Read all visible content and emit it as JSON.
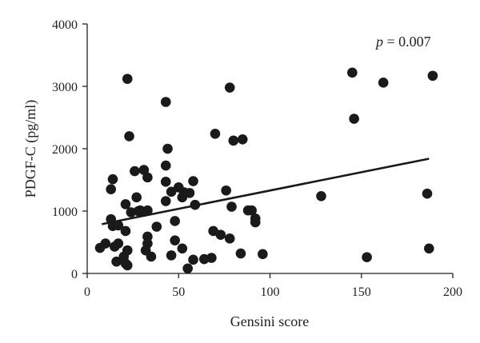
{
  "chart_data": {
    "type": "scatter",
    "title": "",
    "xlabel": "Gensini score",
    "ylabel": "PDGF-C (pg/ml)",
    "xlim": [
      0,
      200
    ],
    "ylim": [
      0,
      4000
    ],
    "xticks": [
      0,
      50,
      100,
      150,
      200
    ],
    "yticks": [
      0,
      1000,
      2000,
      3000,
      4000
    ],
    "grid": false,
    "annotation": {
      "italic": "p",
      "rest": " = 0.007"
    },
    "trendline": {
      "x": [
        8,
        187
      ],
      "y": [
        790,
        1840
      ]
    },
    "points": [
      {
        "x": 22,
        "y": 3120
      },
      {
        "x": 43,
        "y": 2750
      },
      {
        "x": 78,
        "y": 2980
      },
      {
        "x": 145,
        "y": 3220
      },
      {
        "x": 162,
        "y": 3060
      },
      {
        "x": 189,
        "y": 3170
      },
      {
        "x": 146,
        "y": 2480
      },
      {
        "x": 23,
        "y": 2200
      },
      {
        "x": 70,
        "y": 2240
      },
      {
        "x": 80,
        "y": 2130
      },
      {
        "x": 85,
        "y": 2150
      },
      {
        "x": 44,
        "y": 2000
      },
      {
        "x": 43,
        "y": 1730
      },
      {
        "x": 26,
        "y": 1640
      },
      {
        "x": 31,
        "y": 1660
      },
      {
        "x": 33,
        "y": 1540
      },
      {
        "x": 14,
        "y": 1510
      },
      {
        "x": 13,
        "y": 1350
      },
      {
        "x": 43,
        "y": 1470
      },
      {
        "x": 58,
        "y": 1480
      },
      {
        "x": 50,
        "y": 1380
      },
      {
        "x": 46,
        "y": 1310
      },
      {
        "x": 53,
        "y": 1300
      },
      {
        "x": 56,
        "y": 1290
      },
      {
        "x": 52,
        "y": 1220
      },
      {
        "x": 76,
        "y": 1330
      },
      {
        "x": 27,
        "y": 1220
      },
      {
        "x": 43,
        "y": 1160
      },
      {
        "x": 59,
        "y": 1100
      },
      {
        "x": 21,
        "y": 1110
      },
      {
        "x": 24,
        "y": 980
      },
      {
        "x": 29,
        "y": 1010
      },
      {
        "x": 33,
        "y": 1010
      },
      {
        "x": 31,
        "y": 990
      },
      {
        "x": 28,
        "y": 1000
      },
      {
        "x": 79,
        "y": 1070
      },
      {
        "x": 88,
        "y": 1010
      },
      {
        "x": 90,
        "y": 1010
      },
      {
        "x": 92,
        "y": 880
      },
      {
        "x": 92,
        "y": 820
      },
      {
        "x": 128,
        "y": 1240
      },
      {
        "x": 186,
        "y": 1280
      },
      {
        "x": 13,
        "y": 870
      },
      {
        "x": 14,
        "y": 760
      },
      {
        "x": 17,
        "y": 770
      },
      {
        "x": 21,
        "y": 680
      },
      {
        "x": 38,
        "y": 750
      },
      {
        "x": 48,
        "y": 840
      },
      {
        "x": 10,
        "y": 480
      },
      {
        "x": 7,
        "y": 410
      },
      {
        "x": 15,
        "y": 430
      },
      {
        "x": 17,
        "y": 480
      },
      {
        "x": 33,
        "y": 590
      },
      {
        "x": 33,
        "y": 480
      },
      {
        "x": 48,
        "y": 530
      },
      {
        "x": 69,
        "y": 680
      },
      {
        "x": 73,
        "y": 620
      },
      {
        "x": 78,
        "y": 560
      },
      {
        "x": 52,
        "y": 400
      },
      {
        "x": 32,
        "y": 370
      },
      {
        "x": 22,
        "y": 370
      },
      {
        "x": 16,
        "y": 190
      },
      {
        "x": 20,
        "y": 270
      },
      {
        "x": 21,
        "y": 160
      },
      {
        "x": 22,
        "y": 130
      },
      {
        "x": 35,
        "y": 270
      },
      {
        "x": 46,
        "y": 290
      },
      {
        "x": 58,
        "y": 220
      },
      {
        "x": 64,
        "y": 230
      },
      {
        "x": 68,
        "y": 250
      },
      {
        "x": 55,
        "y": 80
      },
      {
        "x": 84,
        "y": 320
      },
      {
        "x": 96,
        "y": 310
      },
      {
        "x": 153,
        "y": 260
      },
      {
        "x": 187,
        "y": 400
      }
    ]
  }
}
